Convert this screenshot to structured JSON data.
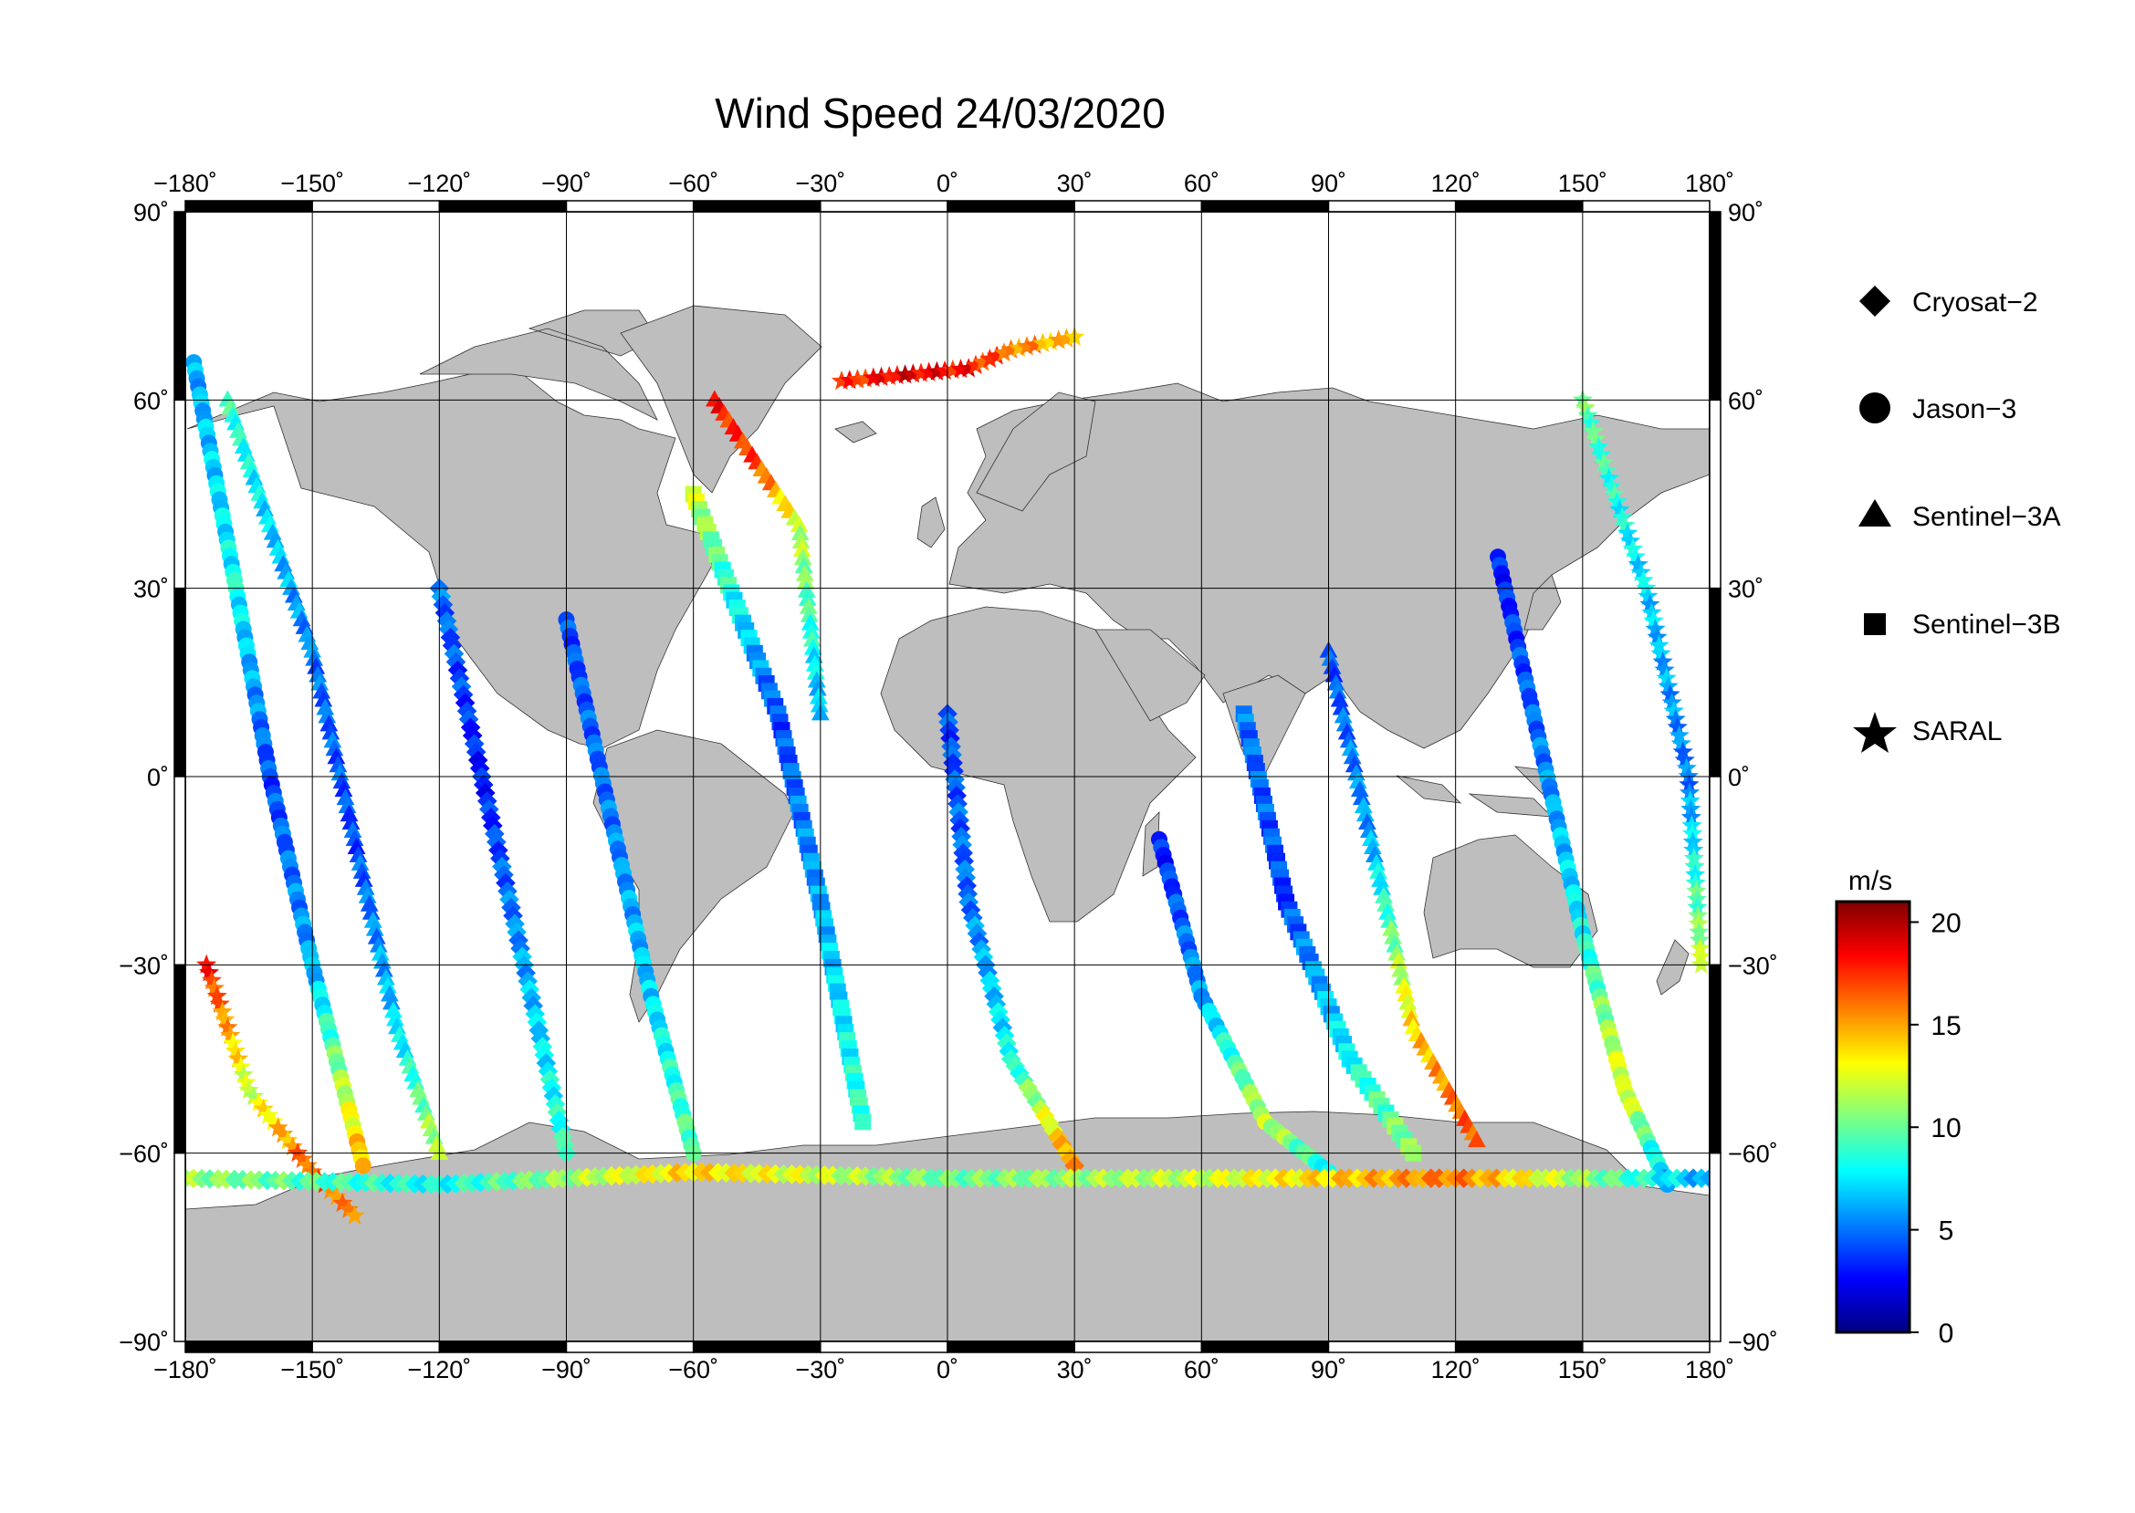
{
  "title": "Wind Speed 24/03/2020",
  "map": {
    "projection": "equirectangular",
    "lon_range": [
      -180,
      180
    ],
    "lat_range": [
      -90,
      90
    ],
    "x_ticks": [
      -180,
      -150,
      -120,
      -90,
      -60,
      -30,
      0,
      30,
      60,
      90,
      120,
      150,
      180
    ],
    "x_tick_labels": [
      "−180˚",
      "−150˚",
      "−120˚",
      "−90˚",
      "−60˚",
      "−30˚",
      "0˚",
      "30˚",
      "60˚",
      "90˚",
      "120˚",
      "150˚",
      "180˚"
    ],
    "y_ticks": [
      90,
      60,
      30,
      0,
      -30,
      -60,
      -90
    ],
    "y_tick_labels": [
      "90˚",
      "60˚",
      "30˚",
      "0˚",
      "−30˚",
      "−60˚",
      "−90˚"
    ],
    "land_color": "#bebebe",
    "ocean_color": "#ffffff",
    "grid": true
  },
  "legend": {
    "items": [
      {
        "label": "Cryosat−2",
        "marker": "diamond-icon"
      },
      {
        "label": "Jason−3",
        "marker": "circle-icon"
      },
      {
        "label": "Sentinel−3A",
        "marker": "triangle-icon"
      },
      {
        "label": "Sentinel−3B",
        "marker": "square-icon"
      },
      {
        "label": "SARAL",
        "marker": "star-icon"
      }
    ]
  },
  "colorbar": {
    "unit": "m/s",
    "min": 0,
    "max": 21,
    "ticks": [
      0,
      5,
      10,
      15,
      20
    ],
    "tick_labels": [
      "0",
      "5",
      "10",
      "15",
      "20"
    ],
    "colormap": "jet"
  },
  "chart_data": {
    "type": "scatter",
    "xlabel": "",
    "ylabel": "",
    "xlim": [
      -180,
      180
    ],
    "ylim": [
      -90,
      90
    ],
    "value_unit": "m/s",
    "color_range": [
      0,
      21
    ],
    "tracks": [
      {
        "satellite": "Jason−3",
        "marker": "circle",
        "path": [
          [
            -178,
            66
          ],
          [
            -168,
            30
          ],
          [
            -160,
            0
          ],
          [
            -150,
            -30
          ],
          [
            -138,
            -62
          ]
        ],
        "values": [
          6,
          8,
          4,
          6,
          15
        ]
      },
      {
        "satellite": "Sentinel−3A",
        "marker": "triangle",
        "path": [
          [
            -170,
            60
          ],
          [
            -150,
            20
          ],
          [
            -140,
            -10
          ],
          [
            -130,
            -40
          ],
          [
            -120,
            -60
          ]
        ],
        "values": [
          9,
          5,
          4,
          7,
          12
        ]
      },
      {
        "satellite": "SARAL",
        "marker": "star",
        "path": [
          [
            -175,
            -30
          ],
          [
            -165,
            -50
          ],
          [
            -150,
            -63
          ],
          [
            -140,
            -70
          ]
        ],
        "values": [
          18,
          12,
          17,
          15
        ]
      },
      {
        "satellite": "Cryosat−2",
        "marker": "diamond",
        "path": [
          [
            -120,
            30
          ],
          [
            -110,
            0
          ],
          [
            -100,
            -30
          ],
          [
            -90,
            -60
          ]
        ],
        "values": [
          5,
          3,
          6,
          9
        ]
      },
      {
        "satellite": "Jason−3",
        "marker": "circle",
        "path": [
          [
            -90,
            25
          ],
          [
            -80,
            -5
          ],
          [
            -70,
            -35
          ],
          [
            -60,
            -60
          ]
        ],
        "values": [
          4,
          5,
          7,
          10
        ]
      },
      {
        "satellite": "Sentinel−3B",
        "marker": "square",
        "path": [
          [
            -60,
            45
          ],
          [
            -40,
            10
          ],
          [
            -30,
            -20
          ],
          [
            -20,
            -55
          ]
        ],
        "values": [
          12,
          4,
          6,
          9
        ]
      },
      {
        "satellite": "Sentinel−3A",
        "marker": "triangle",
        "path": [
          [
            -55,
            60
          ],
          [
            -45,
            50
          ],
          [
            -35,
            40
          ],
          [
            -30,
            10
          ]
        ],
        "values": [
          18,
          17,
          12,
          6
        ]
      },
      {
        "satellite": "SARAL",
        "marker": "star",
        "path": [
          [
            -25,
            63
          ],
          [
            -10,
            64
          ],
          [
            5,
            65
          ],
          [
            15,
            68
          ],
          [
            30,
            70
          ]
        ],
        "values": [
          17,
          19,
          18,
          16,
          14
        ]
      },
      {
        "satellite": "Cryosat−2",
        "marker": "diamond",
        "path": [
          [
            0,
            10
          ],
          [
            5,
            -20
          ],
          [
            15,
            -45
          ],
          [
            30,
            -62
          ]
        ],
        "values": [
          4,
          5,
          8,
          16
        ]
      },
      {
        "satellite": "Jason−3",
        "marker": "circle",
        "path": [
          [
            50,
            -10
          ],
          [
            60,
            -35
          ],
          [
            75,
            -55
          ],
          [
            90,
            -63
          ]
        ],
        "values": [
          3,
          6,
          12,
          8
        ]
      },
      {
        "satellite": "Sentinel−3B",
        "marker": "square",
        "path": [
          [
            70,
            10
          ],
          [
            80,
            -20
          ],
          [
            95,
            -45
          ],
          [
            110,
            -60
          ]
        ],
        "values": [
          5,
          4,
          8,
          11
        ]
      },
      {
        "satellite": "Sentinel−3A",
        "marker": "triangle",
        "path": [
          [
            90,
            20
          ],
          [
            100,
            -10
          ],
          [
            110,
            -40
          ],
          [
            125,
            -58
          ]
        ],
        "values": [
          4,
          6,
          14,
          17
        ]
      },
      {
        "satellite": "Jason−3",
        "marker": "circle",
        "path": [
          [
            130,
            35
          ],
          [
            140,
            5
          ],
          [
            150,
            -25
          ],
          [
            160,
            -50
          ],
          [
            170,
            -65
          ]
        ],
        "values": [
          3,
          5,
          8,
          13,
          6
        ]
      },
      {
        "satellite": "SARAL",
        "marker": "star",
        "path": [
          [
            150,
            60
          ],
          [
            165,
            30
          ],
          [
            175,
            0
          ],
          [
            178,
            -30
          ]
        ],
        "values": [
          10,
          7,
          5,
          12
        ]
      },
      {
        "satellite": "Cryosat−2",
        "marker": "diamond",
        "path": [
          [
            -180,
            -64
          ],
          [
            -120,
            -65
          ],
          [
            -60,
            -63
          ],
          [
            0,
            -64
          ],
          [
            60,
            -64
          ],
          [
            120,
            -64
          ],
          [
            180,
            -64
          ]
        ],
        "values": [
          11,
          8,
          14,
          10,
          12,
          16,
          6
        ]
      }
    ]
  }
}
